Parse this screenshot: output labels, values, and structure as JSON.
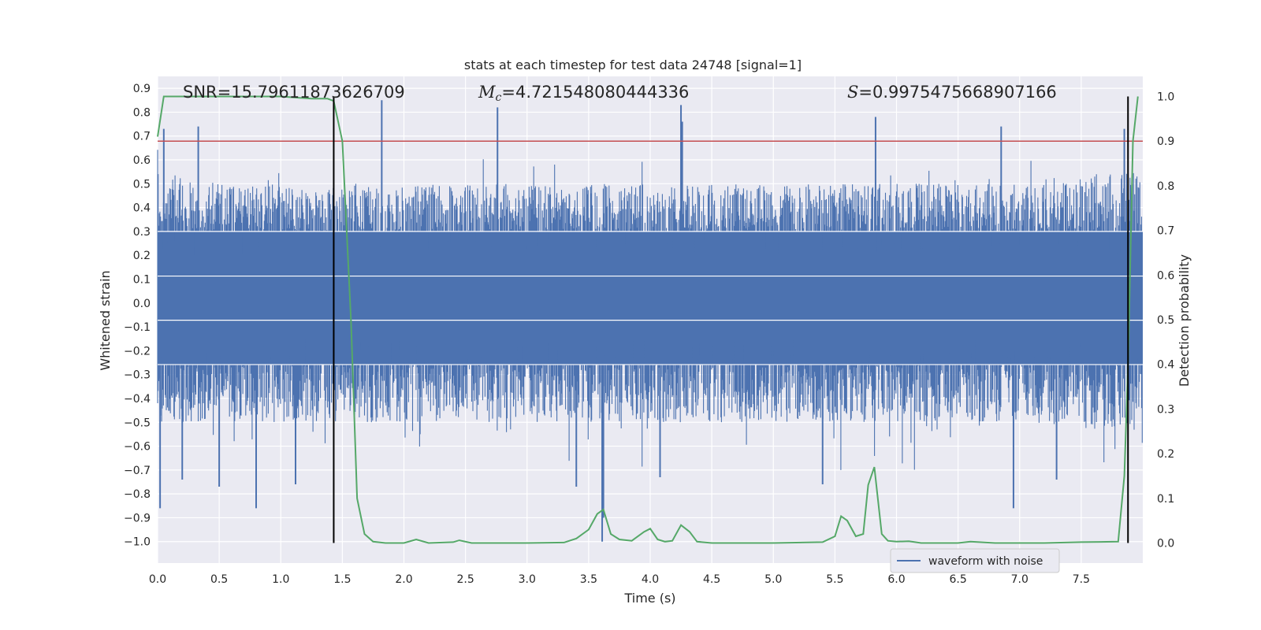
{
  "chart_data": {
    "type": "line",
    "title": "stats at each timestep for test data 24748 [signal=1]",
    "xlabel": "Time (s)",
    "ylabel": "Whitened strain",
    "ylabel_right": "Detection probability",
    "xlim": [
      0.0,
      8.0
    ],
    "ylim": [
      -1.09,
      0.95
    ],
    "ylim_right": [
      -0.045,
      1.045
    ],
    "x_ticks": [
      "0.0",
      "0.5",
      "1.0",
      "1.5",
      "2.0",
      "2.5",
      "3.0",
      "3.5",
      "4.0",
      "4.5",
      "5.0",
      "5.5",
      "6.0",
      "6.5",
      "7.0",
      "7.5"
    ],
    "y_ticks": [
      "0.9",
      "0.8",
      "0.7",
      "0.6",
      "0.5",
      "0.4",
      "0.3",
      "0.2",
      "0.1",
      "0.0",
      "−0.1",
      "−0.2",
      "−0.3",
      "−0.4",
      "−0.5",
      "−0.6",
      "−0.7",
      "−0.8",
      "−0.9",
      "−1.0"
    ],
    "y_right_ticks": [
      "1.0",
      "0.9",
      "0.8",
      "0.7",
      "0.6",
      "0.5",
      "0.4",
      "0.3",
      "0.2",
      "0.1",
      "0.0"
    ],
    "grid": true,
    "legend": {
      "position": "lower-right",
      "entries": [
        "waveform with noise"
      ]
    },
    "annotations": {
      "snr": "SNR=15.79611873626709",
      "mc_symbol": "M",
      "mc_sub": "c",
      "mc_value": "=4.721548080444336",
      "s_symbol": "S",
      "s_value": "=0.9975475668907166"
    },
    "vlines": [
      1.43,
      7.88
    ],
    "threshold": {
      "axis": "right",
      "value": 0.9
    },
    "series": [
      {
        "name": "waveform with noise",
        "axis": "left",
        "style": "noise",
        "envelope_upper": [
          [
            0.0,
            0.55
          ],
          [
            0.5,
            0.5
          ],
          [
            1.0,
            0.5
          ],
          [
            1.5,
            0.5
          ],
          [
            2.0,
            0.5
          ],
          [
            3.0,
            0.5
          ],
          [
            4.0,
            0.5
          ],
          [
            5.0,
            0.5
          ],
          [
            6.0,
            0.5
          ],
          [
            7.0,
            0.5
          ],
          [
            7.5,
            0.55
          ],
          [
            8.0,
            0.55
          ]
        ],
        "envelope_lower": [
          [
            0.0,
            -0.5
          ],
          [
            1.0,
            -0.5
          ],
          [
            2.0,
            -0.5
          ],
          [
            3.0,
            -0.5
          ],
          [
            4.0,
            -0.5
          ],
          [
            5.0,
            -0.5
          ],
          [
            6.0,
            -0.5
          ],
          [
            7.0,
            -0.5
          ],
          [
            8.0,
            -0.55
          ]
        ],
        "spikes": [
          [
            0.02,
            -0.86
          ],
          [
            0.05,
            0.73
          ],
          [
            0.2,
            -0.74
          ],
          [
            0.33,
            0.74
          ],
          [
            0.5,
            -0.77
          ],
          [
            0.8,
            -0.86
          ],
          [
            1.12,
            -0.76
          ],
          [
            1.82,
            0.85
          ],
          [
            2.76,
            0.82
          ],
          [
            3.4,
            -0.77
          ],
          [
            3.61,
            -1.0
          ],
          [
            3.62,
            -0.9
          ],
          [
            4.08,
            -0.73
          ],
          [
            4.25,
            0.83
          ],
          [
            4.26,
            0.76
          ],
          [
            5.4,
            -0.76
          ],
          [
            5.83,
            0.78
          ],
          [
            6.85,
            0.74
          ],
          [
            6.95,
            -0.86
          ],
          [
            7.3,
            -0.74
          ],
          [
            7.85,
            0.73
          ]
        ],
        "color": "#4c72b0"
      },
      {
        "name": "",
        "axis": "right",
        "color": "#55a868",
        "points": [
          [
            0.0,
            0.91
          ],
          [
            0.05,
            1.0
          ],
          [
            0.15,
            1.0
          ],
          [
            0.25,
            1.0
          ],
          [
            0.5,
            1.0
          ],
          [
            0.75,
            1.0
          ],
          [
            1.0,
            1.0
          ],
          [
            1.25,
            0.995
          ],
          [
            1.38,
            0.995
          ],
          [
            1.43,
            0.99
          ],
          [
            1.5,
            0.9
          ],
          [
            1.57,
            0.5
          ],
          [
            1.62,
            0.1
          ],
          [
            1.68,
            0.02
          ],
          [
            1.75,
            0.003
          ],
          [
            1.85,
            0.0
          ],
          [
            2.0,
            0.0
          ],
          [
            2.1,
            0.008
          ],
          [
            2.2,
            0.0
          ],
          [
            2.4,
            0.002
          ],
          [
            2.45,
            0.006
          ],
          [
            2.55,
            0.0
          ],
          [
            3.0,
            0.0
          ],
          [
            3.3,
            0.001
          ],
          [
            3.4,
            0.01
          ],
          [
            3.5,
            0.03
          ],
          [
            3.57,
            0.065
          ],
          [
            3.62,
            0.075
          ],
          [
            3.68,
            0.02
          ],
          [
            3.75,
            0.008
          ],
          [
            3.85,
            0.005
          ],
          [
            3.95,
            0.025
          ],
          [
            4.0,
            0.032
          ],
          [
            4.06,
            0.008
          ],
          [
            4.12,
            0.003
          ],
          [
            4.18,
            0.005
          ],
          [
            4.25,
            0.04
          ],
          [
            4.32,
            0.025
          ],
          [
            4.38,
            0.003
          ],
          [
            4.5,
            0.0
          ],
          [
            5.0,
            0.0
          ],
          [
            5.4,
            0.002
          ],
          [
            5.5,
            0.015
          ],
          [
            5.55,
            0.06
          ],
          [
            5.6,
            0.05
          ],
          [
            5.67,
            0.015
          ],
          [
            5.73,
            0.02
          ],
          [
            5.77,
            0.13
          ],
          [
            5.82,
            0.17
          ],
          [
            5.88,
            0.02
          ],
          [
            5.93,
            0.005
          ],
          [
            6.0,
            0.003
          ],
          [
            6.1,
            0.004
          ],
          [
            6.2,
            0.0
          ],
          [
            6.5,
            0.0
          ],
          [
            6.6,
            0.003
          ],
          [
            6.8,
            0.0
          ],
          [
            7.2,
            0.0
          ],
          [
            7.5,
            0.002
          ],
          [
            7.8,
            0.003
          ],
          [
            7.85,
            0.15
          ],
          [
            7.88,
            0.4
          ],
          [
            7.92,
            0.9
          ],
          [
            7.96,
            1.0
          ]
        ]
      }
    ]
  }
}
